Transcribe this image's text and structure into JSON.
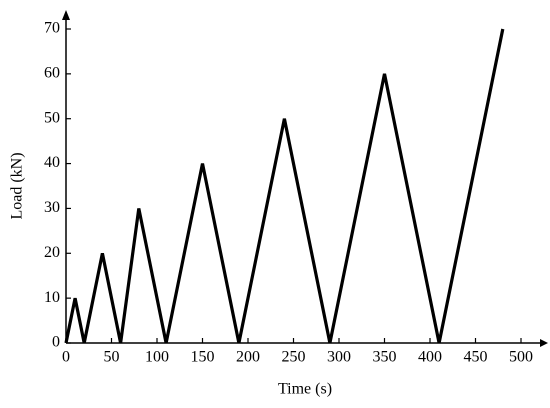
{
  "chart_data": {
    "type": "line",
    "x_label": "Time (s)",
    "y_label": "Load (kN)",
    "x": [
      0,
      10,
      20,
      40,
      60,
      80,
      110,
      150,
      190,
      240,
      290,
      350,
      410,
      480
    ],
    "series": [
      {
        "values": [
          0,
          10,
          0,
          20,
          0,
          30,
          0,
          40,
          0,
          50,
          0,
          60,
          0,
          70
        ],
        "color": "#000000"
      }
    ],
    "xlim": [
      0,
      500
    ],
    "ylim": [
      0,
      70
    ],
    "xticks": [
      0,
      50,
      100,
      150,
      200,
      250,
      300,
      350,
      400,
      450,
      500
    ],
    "yticks": [
      0,
      10,
      20,
      30,
      40,
      50,
      60,
      70
    ],
    "grid": false
  }
}
